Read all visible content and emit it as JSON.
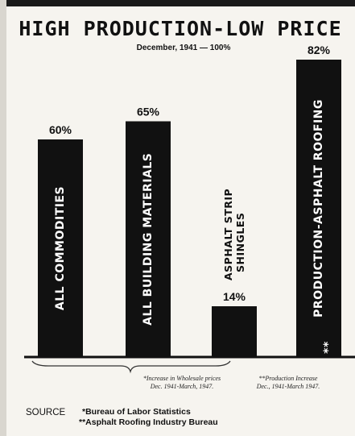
{
  "chart_data": {
    "type": "bar",
    "title": "HIGH PRODUCTION-LOW PRICE",
    "subtitle": "December, 1941 — 100%",
    "categories": [
      "ALL COMMODITIES",
      "ALL BUILDING MATERIALS",
      "ASPHALT STRIP SHINGLES",
      "PRODUCTION-ASPHALT ROOFING"
    ],
    "values": [
      60,
      65,
      14,
      82
    ],
    "value_labels": [
      "60%",
      "65%",
      "14%",
      "82%"
    ],
    "markers": [
      "",
      "",
      "",
      "**"
    ],
    "bar_color": "#111111",
    "ylim": [
      0,
      100
    ]
  },
  "notes": {
    "price_note_line1": "*Increase in Wholesale prices",
    "price_note_line2": "Dec. 1941-March, 1947.",
    "production_note_line1": "**Production Increase",
    "production_note_line2": "Dec., 1941-March 1947."
  },
  "source": {
    "label": "SOURCE",
    "line1": "*Bureau of Labor Statistics",
    "line2": "**Asphalt Roofing Industry Bureau"
  }
}
